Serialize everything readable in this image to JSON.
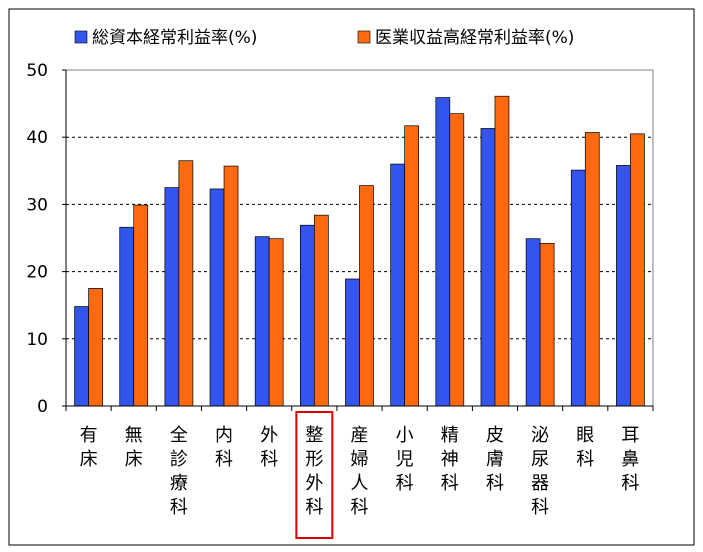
{
  "chart_data": {
    "type": "bar",
    "categories": [
      {
        "chars": [
          "有",
          "床"
        ]
      },
      {
        "chars": [
          "無",
          "床"
        ]
      },
      {
        "chars": [
          "全",
          "診",
          "療",
          "科"
        ]
      },
      {
        "chars": [
          "内",
          "科"
        ]
      },
      {
        "chars": [
          "外",
          "科"
        ]
      },
      {
        "chars": [
          "整",
          "形",
          "外",
          "科"
        ],
        "highlighted": true
      },
      {
        "chars": [
          "産",
          "婦",
          "人",
          "科"
        ]
      },
      {
        "chars": [
          "小",
          "児",
          "科"
        ]
      },
      {
        "chars": [
          "精",
          "神",
          "科"
        ]
      },
      {
        "chars": [
          "皮",
          "膚",
          "科"
        ]
      },
      {
        "chars": [
          "泌",
          "尿",
          "器",
          "科"
        ]
      },
      {
        "chars": [
          "眼",
          "科"
        ]
      },
      {
        "chars": [
          "耳",
          "鼻",
          "科"
        ]
      }
    ],
    "series": [
      {
        "name": "総資本経常利益率(%)",
        "color": "#3355ee",
        "values": [
          14.8,
          26.6,
          32.5,
          32.3,
          25.2,
          26.9,
          18.9,
          36.0,
          45.9,
          41.3,
          24.9,
          35.1,
          35.8
        ]
      },
      {
        "name": "医業収益高経常利益率(%)",
        "color": "#ff6a10",
        "values": [
          17.5,
          29.9,
          36.5,
          35.7,
          24.9,
          28.4,
          32.8,
          41.7,
          43.5,
          46.1,
          24.2,
          40.7,
          40.5
        ]
      }
    ],
    "yticks": [
      0,
      10,
      20,
      30,
      40,
      50
    ],
    "ylim": [
      0,
      50
    ],
    "grid": "horizontal-dashed",
    "legend": "top",
    "highlight_color": "#dd0000"
  }
}
